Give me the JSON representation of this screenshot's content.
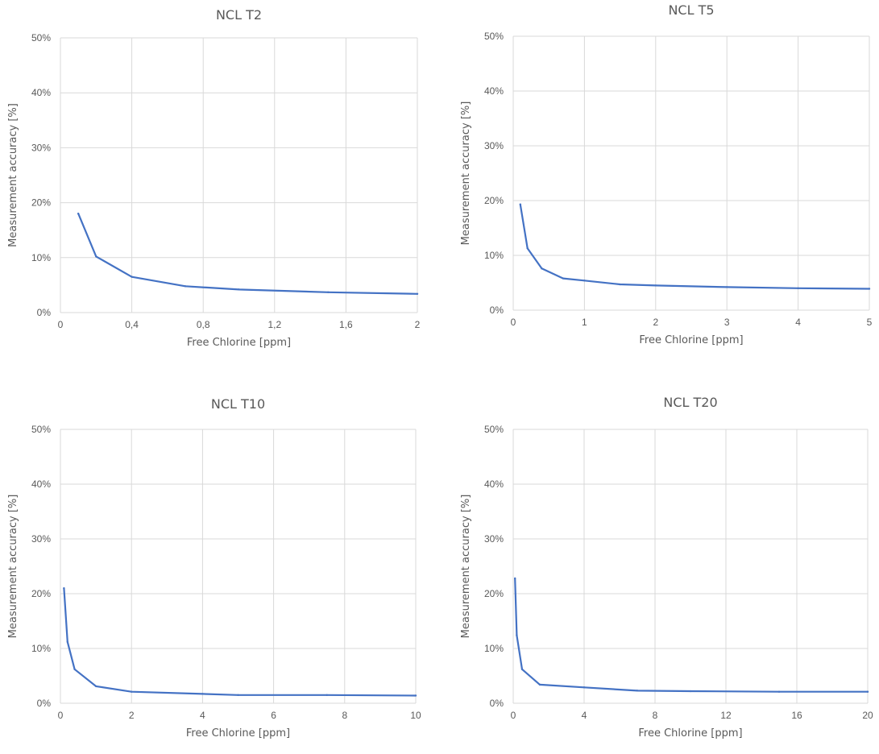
{
  "chart_data": [
    {
      "type": "line",
      "title": "NCL T2",
      "xlabel": "Free Chlorine [ppm]",
      "ylabel": "Measurement accuracy [%]",
      "xlim": [
        0,
        2
      ],
      "ylim": [
        0,
        0.5
      ],
      "x_ticks": [
        0,
        0.4,
        0.8,
        1.2,
        1.6,
        2
      ],
      "x_tick_labels": [
        "0",
        "0,4",
        "0,8",
        "1,2",
        "1,6",
        "2"
      ],
      "y_ticks": [
        0,
        0.1,
        0.2,
        0.3,
        0.4,
        0.5
      ],
      "y_tick_labels": [
        "0%",
        "10%",
        "20%",
        "30%",
        "40%",
        "50%"
      ],
      "grid": "vertical-and-horizontal",
      "series": [
        {
          "x": [
            0.1,
            0.2,
            0.4,
            0.7,
            1.0,
            1.5,
            2.0
          ],
          "values": [
            0.18,
            0.102,
            0.065,
            0.048,
            0.042,
            0.037,
            0.034
          ]
        }
      ]
    },
    {
      "type": "line",
      "title": "NCL T5",
      "xlabel": "Free Chlorine [ppm]",
      "ylabel": "Measurement accuracy [%]",
      "xlim": [
        0,
        5
      ],
      "ylim": [
        0,
        0.5
      ],
      "x_ticks": [
        0,
        1,
        2,
        3,
        4,
        5
      ],
      "x_tick_labels": [
        "0",
        "1",
        "2",
        "3",
        "4",
        "5"
      ],
      "y_ticks": [
        0,
        0.1,
        0.2,
        0.3,
        0.4,
        0.5
      ],
      "y_tick_labels": [
        "0%",
        "10%",
        "20%",
        "30%",
        "40%",
        "50%"
      ],
      "grid": "vertical-and-horizontal",
      "series": [
        {
          "x": [
            0.1,
            0.2,
            0.4,
            0.7,
            1.0,
            1.5,
            2.0,
            3.0,
            4.0,
            5.0
          ],
          "values": [
            0.193,
            0.113,
            0.076,
            0.058,
            0.054,
            0.047,
            0.045,
            0.042,
            0.04,
            0.039
          ]
        }
      ]
    },
    {
      "type": "line",
      "title": "NCL T10",
      "xlabel": "Free Chlorine [ppm]",
      "ylabel": "Measurement accuracy [%]",
      "xlim": [
        0,
        10
      ],
      "ylim": [
        0,
        0.5
      ],
      "x_ticks": [
        0,
        2,
        4,
        6,
        8,
        10
      ],
      "x_tick_labels": [
        "0",
        "2",
        "4",
        "6",
        "8",
        "10"
      ],
      "y_ticks": [
        0,
        0.1,
        0.2,
        0.3,
        0.4,
        0.5
      ],
      "y_tick_labels": [
        "0%",
        "10%",
        "20%",
        "30%",
        "40%",
        "50%"
      ],
      "grid": "vertical-and-horizontal",
      "series": [
        {
          "x": [
            0.1,
            0.2,
            0.4,
            1.0,
            2.0,
            4.0,
            5.0,
            7.5,
            10.0
          ],
          "values": [
            0.21,
            0.112,
            0.062,
            0.031,
            0.021,
            0.017,
            0.015,
            0.015,
            0.014
          ]
        }
      ]
    },
    {
      "type": "line",
      "title": "NCL T20",
      "xlabel": "Free Chlorine [ppm]",
      "ylabel": "Measurement accuracy [%]",
      "xlim": [
        0,
        20
      ],
      "ylim": [
        0,
        0.5
      ],
      "x_ticks": [
        0,
        4,
        8,
        12,
        16,
        20
      ],
      "x_tick_labels": [
        "0",
        "4",
        "8",
        "12",
        "16",
        "20"
      ],
      "y_ticks": [
        0,
        0.1,
        0.2,
        0.3,
        0.4,
        0.5
      ],
      "y_tick_labels": [
        "0%",
        "10%",
        "20%",
        "30%",
        "40%",
        "50%"
      ],
      "grid": "vertical-and-horizontal",
      "series": [
        {
          "x": [
            0.1,
            0.2,
            0.5,
            1.5,
            4.0,
            7.0,
            10.0,
            15.0,
            20.0
          ],
          "values": [
            0.228,
            0.124,
            0.062,
            0.034,
            0.029,
            0.023,
            0.022,
            0.021,
            0.021
          ]
        }
      ]
    }
  ]
}
